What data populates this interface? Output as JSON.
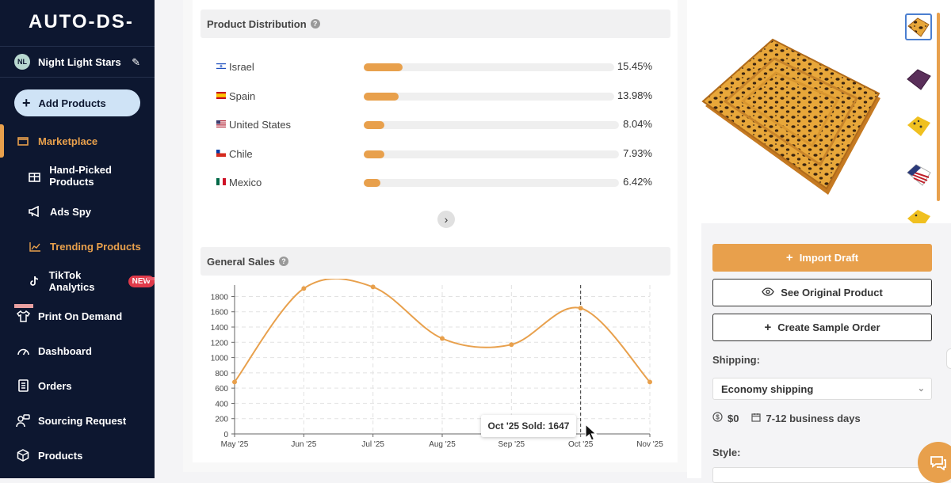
{
  "sidebar": {
    "logo": "AUTO-DS-",
    "user": {
      "initials": "NL",
      "name": "Night Light Stars"
    },
    "add_button": "Add Products",
    "items": [
      {
        "label": "Marketplace",
        "icon": "store-icon"
      },
      {
        "label": "Hand-Picked Products",
        "icon": "gift-icon"
      },
      {
        "label": "Ads Spy",
        "icon": "megaphone-icon"
      },
      {
        "label": "Trending Products",
        "icon": "trending-icon"
      },
      {
        "label": "TikTok Analytics",
        "icon": "tiktok-icon",
        "badge": "NEW"
      },
      {
        "label": "Print On Demand",
        "icon": "shirt-icon"
      },
      {
        "label": "Dashboard",
        "icon": "gauge-icon"
      },
      {
        "label": "Orders",
        "icon": "orders-icon"
      },
      {
        "label": "Sourcing Request",
        "icon": "sourcing-icon"
      },
      {
        "label": "Products",
        "icon": "box-icon"
      }
    ]
  },
  "distribution": {
    "title": "Product Distribution",
    "rows": [
      {
        "country": "Israel",
        "pct": "15.45%",
        "value": 15.45
      },
      {
        "country": "Spain",
        "pct": "13.98%",
        "value": 13.98
      },
      {
        "country": "United States",
        "pct": "8.04%",
        "value": 8.04
      },
      {
        "country": "Chile",
        "pct": "7.93%",
        "value": 7.93
      },
      {
        "country": "Mexico",
        "pct": "6.42%",
        "value": 6.42
      }
    ]
  },
  "sales": {
    "title": "General Sales",
    "tooltip": "Oct '25 Sold: 1647"
  },
  "chart_data": {
    "type": "line",
    "title": "General Sales",
    "categories": [
      "May '25",
      "Jun '25",
      "Jul '25",
      "Aug '25",
      "Sep '25",
      "Oct '25",
      "Nov '25"
    ],
    "values": [
      680,
      1905,
      1925,
      1250,
      1170,
      1647,
      680
    ],
    "yticks": [
      0,
      200,
      400,
      600,
      800,
      1000,
      1200,
      1400,
      1600,
      1800
    ],
    "ylim": [
      0,
      1950
    ],
    "grid": true,
    "color": "#e8a04c"
  },
  "actions": {
    "import": "Import Draft",
    "original": "See Original Product",
    "sample": "Create Sample Order"
  },
  "shipping": {
    "label": "Shipping:",
    "method": "Economy shipping",
    "price": "$0",
    "days": "7-12 business days"
  },
  "style": {
    "label": "Style:"
  }
}
